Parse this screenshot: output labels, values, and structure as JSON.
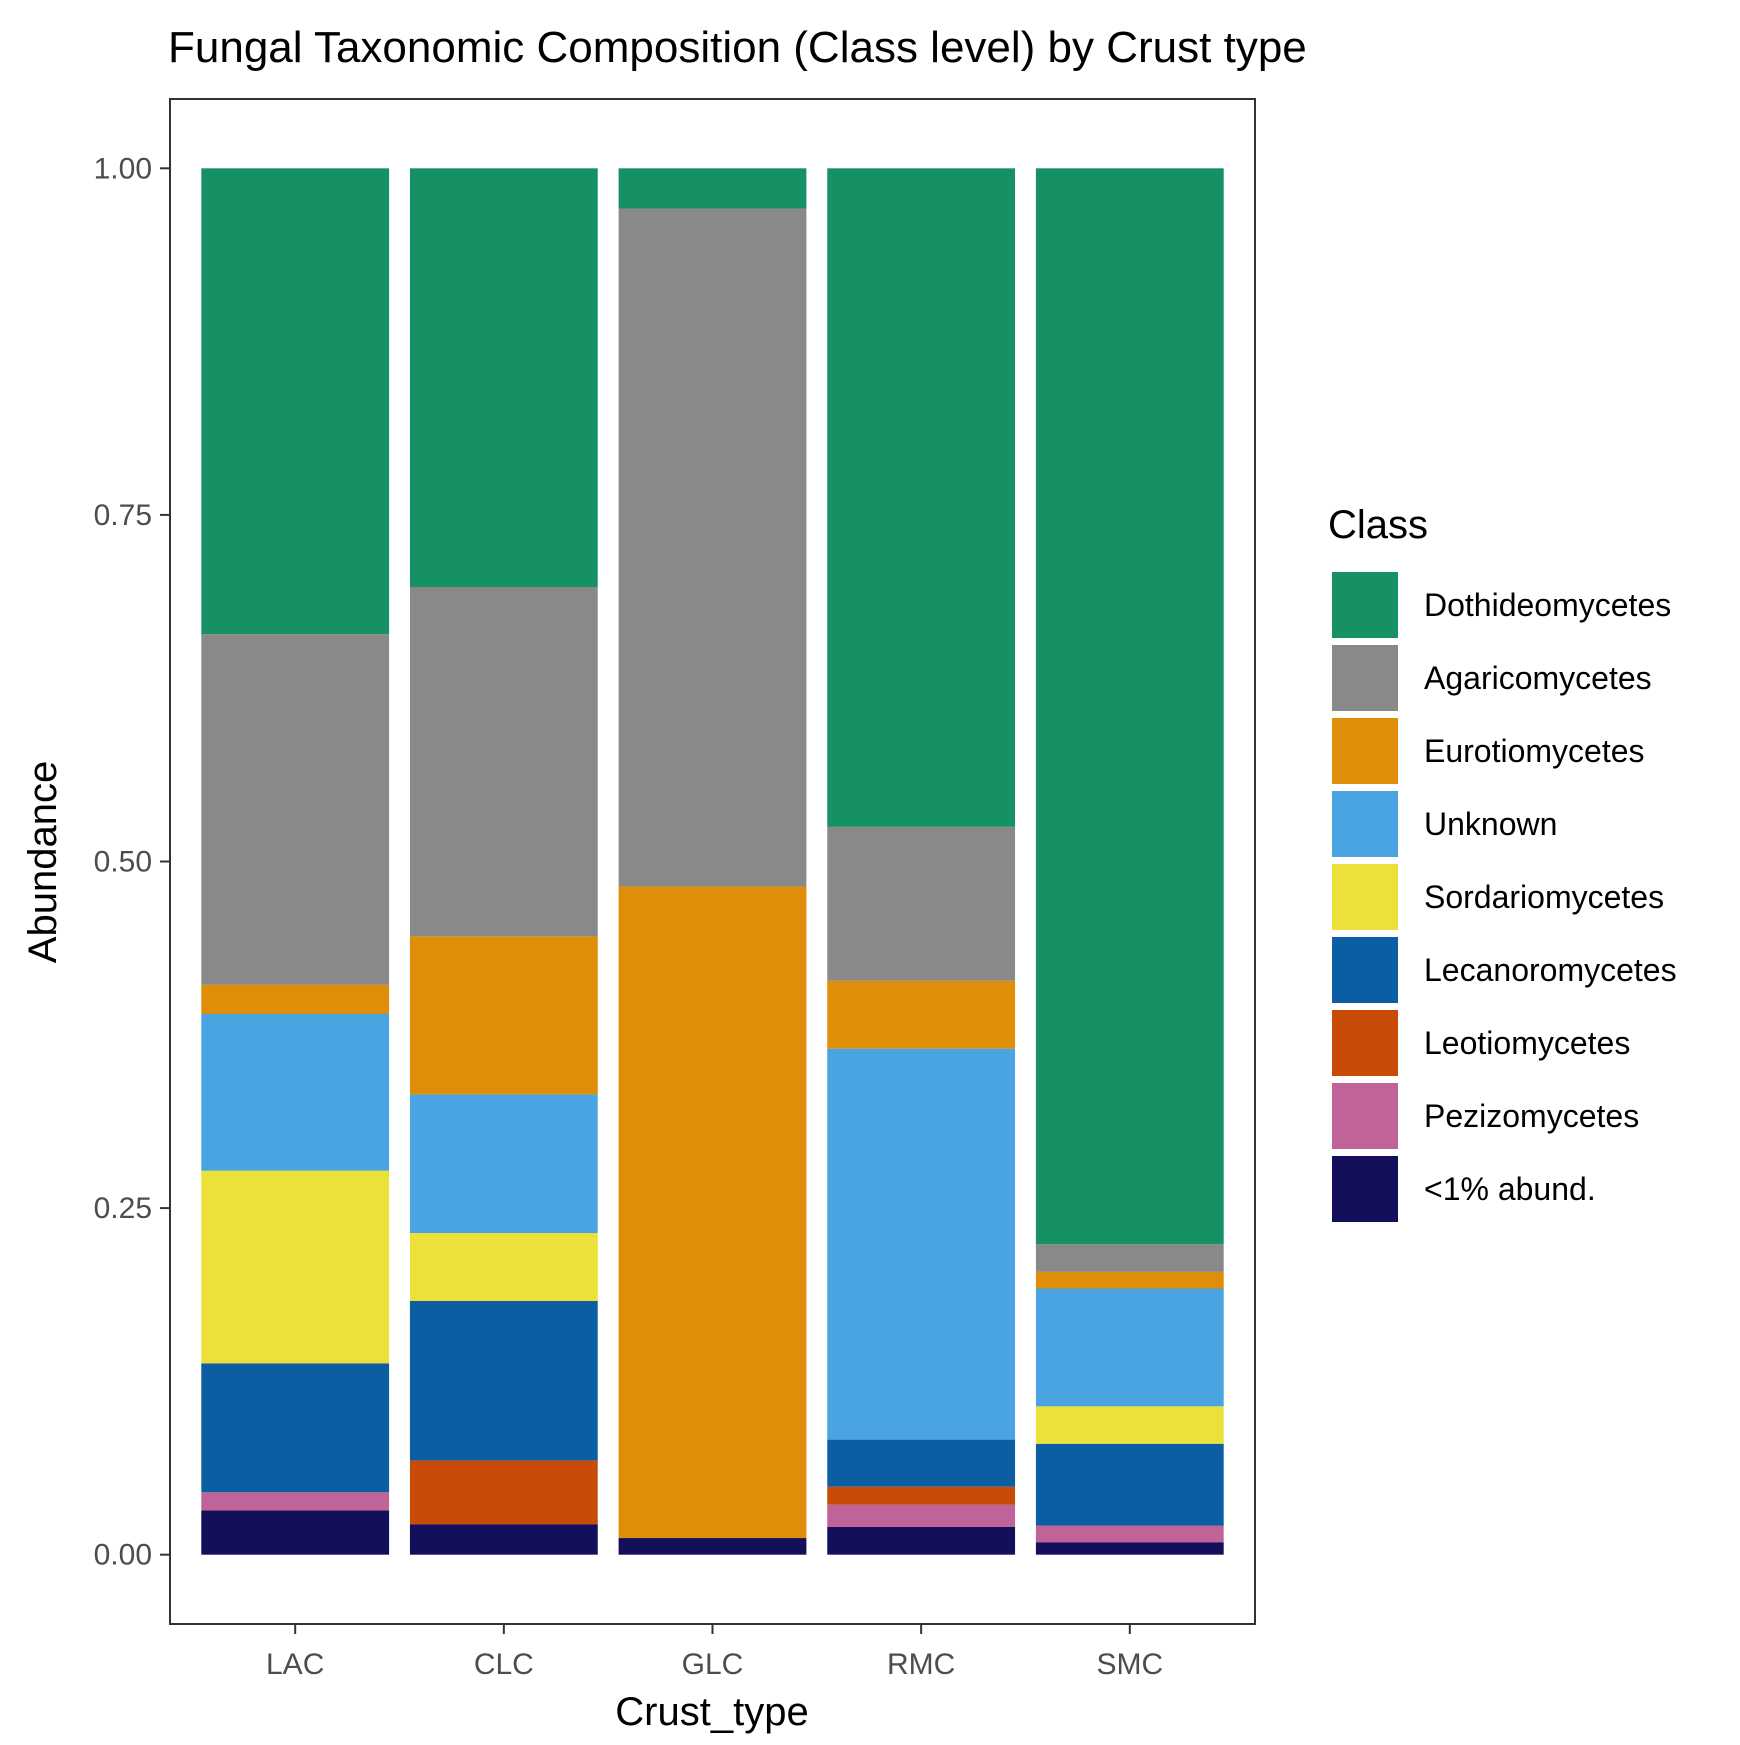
{
  "chart_data": {
    "type": "bar",
    "stacked": true,
    "title": "Fungal Taxonomic Composition (Class level) by Crust type",
    "xlabel": "Crust_type",
    "ylabel": "Abundance",
    "categories": [
      "LAC",
      "CLC",
      "GLC",
      "RMC",
      "SMC"
    ],
    "ylim": [
      -0.05,
      1.05
    ],
    "yticks": [
      0.0,
      0.25,
      0.5,
      0.75,
      1.0
    ],
    "ytick_labels": [
      "0.00",
      "0.25",
      "0.50",
      "0.75",
      "1.00"
    ],
    "grid": false,
    "legend": {
      "title": "Class",
      "position": "right"
    },
    "series": [
      {
        "name": "<1% abund.",
        "color": "#140F5A",
        "values": [
          0.032,
          0.022,
          0.012,
          0.02,
          0.009
        ]
      },
      {
        "name": "Pezizomycetes",
        "color": "#C06399",
        "values": [
          0.013,
          0.0,
          0.0,
          0.016,
          0.012
        ]
      },
      {
        "name": "Leotiomycetes",
        "color": "#C84B08",
        "values": [
          0.0,
          0.046,
          0.0,
          0.013,
          0.0
        ]
      },
      {
        "name": "Lecanoromycetes",
        "color": "#0B5EA1",
        "values": [
          0.093,
          0.115,
          0.0,
          0.034,
          0.059
        ]
      },
      {
        "name": "Sordariomycetes",
        "color": "#EBE138",
        "values": [
          0.139,
          0.049,
          0.0,
          0.0,
          0.027
        ]
      },
      {
        "name": "Unknown",
        "color": "#4AA4E1",
        "values": [
          0.113,
          0.1,
          0.0,
          0.282,
          0.085
        ]
      },
      {
        "name": "Eurotiomycetes",
        "color": "#DE8E09",
        "values": [
          0.021,
          0.114,
          0.47,
          0.049,
          0.012
        ]
      },
      {
        "name": "Agaricomycetes",
        "color": "#898989",
        "values": [
          0.253,
          0.252,
          0.489,
          0.111,
          0.02
        ]
      },
      {
        "name": "Dothideomycetes",
        "color": "#159163",
        "values": [
          0.336,
          0.302,
          0.029,
          0.475,
          0.776
        ]
      }
    ]
  }
}
